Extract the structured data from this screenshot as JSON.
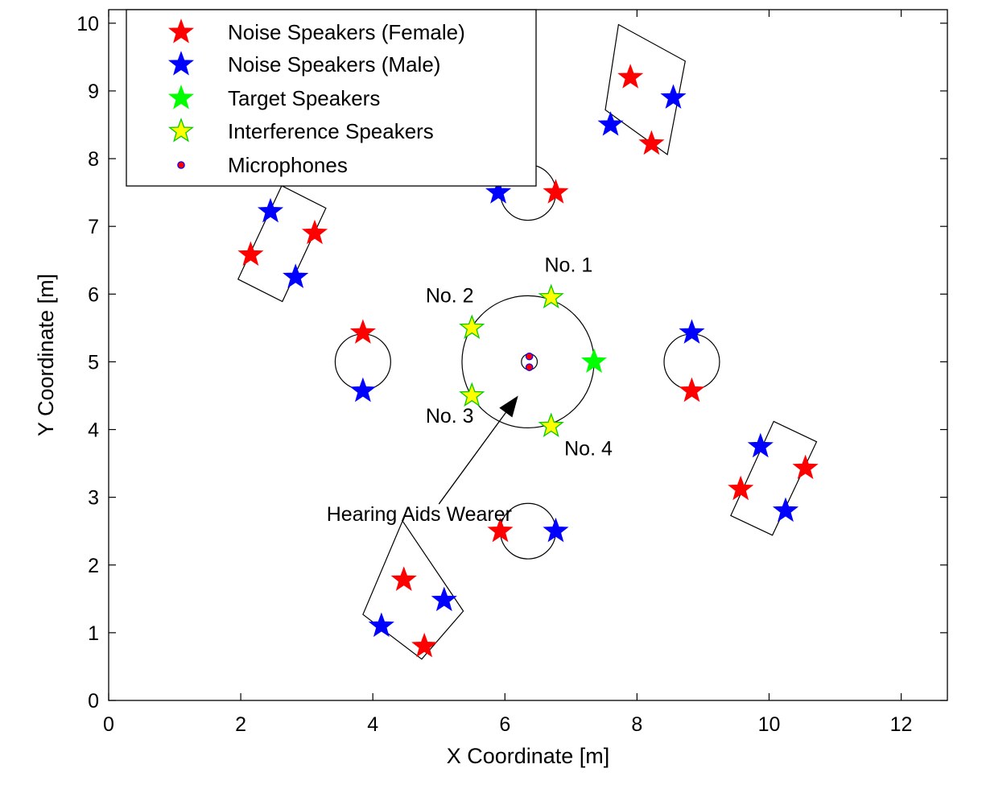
{
  "chart_data": {
    "type": "scatter",
    "xlabel": "X Coordinate [m]",
    "ylabel": "Y Coordinate [m]",
    "xlim": [
      0,
      12.7
    ],
    "ylim": [
      0,
      10.2
    ],
    "xticks": [
      0,
      2,
      4,
      6,
      8,
      10,
      12
    ],
    "yticks": [
      0,
      1,
      2,
      3,
      4,
      5,
      6,
      7,
      8,
      9,
      10
    ],
    "grid": false,
    "legend_position": "top-left",
    "series": [
      {
        "name": "Noise Speakers (Female)",
        "marker": "star",
        "color": "#ff0000",
        "edge": "#ff0000",
        "x": [
          7.9,
          8.22,
          2.15,
          3.12,
          6.77,
          3.85,
          8.83,
          5.93,
          4.47,
          4.78,
          9.57,
          10.55
        ],
        "y": [
          9.2,
          8.22,
          6.58,
          6.9,
          7.5,
          5.43,
          4.57,
          2.5,
          1.78,
          0.8,
          3.12,
          3.43
        ]
      },
      {
        "name": "Noise Speakers (Male)",
        "marker": "star",
        "color": "#0000ff",
        "edge": "#0000ff",
        "x": [
          8.55,
          7.6,
          2.45,
          2.83,
          5.9,
          3.85,
          8.83,
          6.77,
          5.08,
          4.13,
          9.87,
          10.25
        ],
        "y": [
          8.9,
          8.5,
          7.22,
          6.25,
          7.5,
          4.57,
          5.43,
          2.5,
          1.48,
          1.1,
          3.75,
          2.8
        ]
      },
      {
        "name": "Target Speakers",
        "marker": "star",
        "color": "#00ff00",
        "edge": "#00ff00",
        "x": [
          7.35
        ],
        "y": [
          5.0
        ]
      },
      {
        "name": "Interference Speakers",
        "marker": "star",
        "color": "#ffff00",
        "edge": "#00cc00",
        "x": [
          6.7,
          5.5,
          5.5,
          6.7
        ],
        "y": [
          5.95,
          5.5,
          4.5,
          4.05
        ]
      },
      {
        "name": "Microphones",
        "marker": "circle",
        "color": "#ff0000",
        "edge": "#0000ff",
        "x": [
          6.37,
          6.37
        ],
        "y": [
          5.08,
          4.92
        ]
      }
    ],
    "shapes": {
      "circles": [
        {
          "cx": 6.35,
          "cy": 5.0,
          "r": 1.0
        },
        {
          "cx": 6.35,
          "cy": 7.5,
          "r": 0.42
        },
        {
          "cx": 6.35,
          "cy": 2.5,
          "r": 0.42
        },
        {
          "cx": 3.85,
          "cy": 5.0,
          "r": 0.42
        },
        {
          "cx": 8.83,
          "cy": 5.0,
          "r": 0.42
        },
        {
          "cx": 6.37,
          "cy": 5.0,
          "r": 0.12
        }
      ],
      "rectangles": [
        [
          [
            7.52,
            8.72
          ],
          [
            7.72,
            9.98
          ],
          [
            8.73,
            9.44
          ],
          [
            8.46,
            8.06
          ]
        ],
        [
          [
            1.96,
            6.22
          ],
          [
            2.62,
            7.6
          ],
          [
            3.29,
            7.27
          ],
          [
            2.63,
            5.89
          ]
        ],
        [
          [
            3.85,
            1.27
          ],
          [
            4.45,
            2.65
          ],
          [
            5.37,
            1.32
          ],
          [
            4.74,
            0.61
          ]
        ],
        [
          [
            9.42,
            2.73
          ],
          [
            10.07,
            4.12
          ],
          [
            10.72,
            3.82
          ],
          [
            10.05,
            2.44
          ]
        ]
      ]
    },
    "annotations": [
      {
        "text": "No. 1",
        "x": 6.6,
        "y": 6.33
      },
      {
        "text": "No. 2",
        "x": 4.8,
        "y": 5.88
      },
      {
        "text": "No. 3",
        "x": 4.8,
        "y": 4.1
      },
      {
        "text": "No. 4",
        "x": 6.9,
        "y": 3.62
      },
      {
        "text": "Hearing Aids Wearer",
        "x": 3.3,
        "y": 2.65
      }
    ],
    "arrow": {
      "from": [
        5.0,
        2.9
      ],
      "to": [
        6.2,
        4.5
      ]
    }
  }
}
